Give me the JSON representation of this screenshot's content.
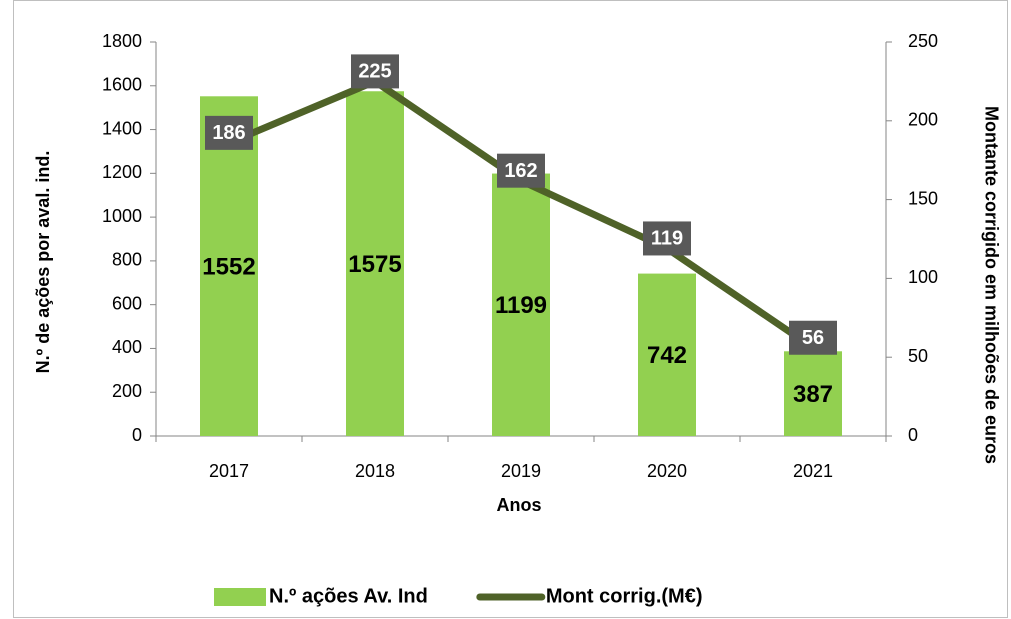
{
  "chart_data": {
    "type": "bar",
    "xlabel": "Anos",
    "ylabel": "N.º de ações por aval. ind.",
    "y2label": "Montante corrigido em milhoões de euros",
    "categories": [
      "2017",
      "2018",
      "2019",
      "2020",
      "2021"
    ],
    "series": [
      {
        "name": "N.º ações Av. Ind",
        "type": "bar",
        "color": "#92d050",
        "values": [
          1552,
          1575,
          1199,
          742,
          387
        ]
      },
      {
        "name": "Mont corrig.(M€)",
        "type": "line",
        "axis": "y2",
        "color": "#4f6228",
        "values": [
          186,
          225,
          162,
          119,
          56
        ]
      }
    ],
    "ylim": [
      0,
      1800
    ],
    "yticks": [
      0,
      200,
      400,
      600,
      800,
      1000,
      1200,
      1400,
      1600,
      1800
    ],
    "y2lim": [
      0,
      250
    ],
    "y2ticks": [
      0,
      50,
      100,
      150,
      200,
      250
    ],
    "grid": false,
    "legend": "bottom"
  }
}
